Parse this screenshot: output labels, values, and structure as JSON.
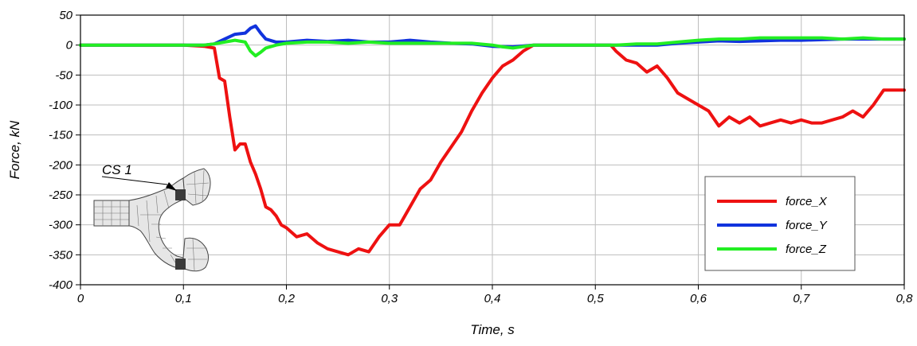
{
  "chart_data": {
    "type": "line",
    "title": "",
    "xlabel": "Time, s",
    "ylabel": "Force, kN",
    "xlim": [
      0,
      0.8
    ],
    "ylim": [
      -400,
      50
    ],
    "x_ticks": [
      0,
      0.1,
      0.2,
      0.3,
      0.4,
      0.5,
      0.6,
      0.7,
      0.8
    ],
    "x_tick_labels": [
      "0",
      "0,1",
      "0,2",
      "0,3",
      "0,4",
      "0,5",
      "0,6",
      "0,7",
      "0,8"
    ],
    "y_ticks": [
      50,
      0,
      -50,
      -100,
      -150,
      -200,
      -250,
      -300,
      -350,
      -400
    ],
    "y_tick_labels": [
      "50",
      "0",
      "-50",
      "-100",
      "-150",
      "-200",
      "-250",
      "-300",
      "-350",
      "-400"
    ],
    "grid": true,
    "legend_position": "bottom-right",
    "annotation": "CS 1",
    "series": [
      {
        "name": "force_X",
        "color": "#ee1111",
        "x": [
          0,
          0.05,
          0.1,
          0.12,
          0.13,
          0.135,
          0.14,
          0.145,
          0.15,
          0.155,
          0.16,
          0.165,
          0.17,
          0.175,
          0.18,
          0.185,
          0.19,
          0.195,
          0.2,
          0.21,
          0.22,
          0.23,
          0.24,
          0.25,
          0.26,
          0.27,
          0.28,
          0.29,
          0.3,
          0.31,
          0.32,
          0.33,
          0.34,
          0.35,
          0.36,
          0.37,
          0.38,
          0.39,
          0.4,
          0.41,
          0.42,
          0.43,
          0.44,
          0.46,
          0.48,
          0.5,
          0.515,
          0.52,
          0.53,
          0.54,
          0.55,
          0.56,
          0.57,
          0.58,
          0.59,
          0.6,
          0.61,
          0.62,
          0.63,
          0.64,
          0.65,
          0.66,
          0.67,
          0.68,
          0.69,
          0.7,
          0.71,
          0.72,
          0.73,
          0.74,
          0.75,
          0.76,
          0.77,
          0.78,
          0.79,
          0.8
        ],
        "y": [
          0,
          0,
          0,
          -2,
          -5,
          -55,
          -60,
          -120,
          -175,
          -165,
          -165,
          -195,
          -215,
          -240,
          -270,
          -275,
          -285,
          -300,
          -305,
          -320,
          -315,
          -330,
          -340,
          -345,
          -350,
          -340,
          -345,
          -320,
          -300,
          -300,
          -270,
          -240,
          -225,
          -195,
          -170,
          -145,
          -110,
          -80,
          -55,
          -35,
          -25,
          -10,
          0,
          0,
          0,
          0,
          0,
          -10,
          -25,
          -30,
          -45,
          -35,
          -55,
          -80,
          -90,
          -100,
          -110,
          -135,
          -120,
          -130,
          -120,
          -135,
          -130,
          -125,
          -130,
          -125,
          -130,
          -130,
          -125,
          -120,
          -110,
          -120,
          -100,
          -75,
          -75,
          -75
        ]
      },
      {
        "name": "force_Y",
        "color": "#1133dd",
        "x": [
          0,
          0.05,
          0.1,
          0.12,
          0.13,
          0.14,
          0.15,
          0.16,
          0.165,
          0.17,
          0.175,
          0.18,
          0.19,
          0.2,
          0.22,
          0.24,
          0.26,
          0.28,
          0.3,
          0.32,
          0.34,
          0.36,
          0.38,
          0.4,
          0.42,
          0.44,
          0.46,
          0.48,
          0.5,
          0.52,
          0.54,
          0.56,
          0.58,
          0.6,
          0.62,
          0.64,
          0.66,
          0.68,
          0.7,
          0.72,
          0.74,
          0.76,
          0.78,
          0.8
        ],
        "y": [
          0,
          0,
          0,
          0,
          2,
          10,
          18,
          20,
          28,
          32,
          20,
          10,
          5,
          5,
          8,
          6,
          8,
          5,
          5,
          8,
          5,
          3,
          2,
          -2,
          -3,
          0,
          0,
          0,
          0,
          0,
          0,
          0,
          3,
          5,
          7,
          6,
          7,
          8,
          8,
          9,
          10,
          10,
          10,
          10
        ]
      },
      {
        "name": "force_Z",
        "color": "#22ee22",
        "x": [
          0,
          0.05,
          0.1,
          0.12,
          0.13,
          0.14,
          0.15,
          0.16,
          0.165,
          0.17,
          0.175,
          0.18,
          0.19,
          0.2,
          0.22,
          0.24,
          0.26,
          0.28,
          0.3,
          0.32,
          0.34,
          0.36,
          0.38,
          0.4,
          0.41,
          0.42,
          0.44,
          0.46,
          0.48,
          0.5,
          0.52,
          0.54,
          0.56,
          0.58,
          0.6,
          0.62,
          0.64,
          0.66,
          0.68,
          0.7,
          0.72,
          0.74,
          0.76,
          0.78,
          0.8
        ],
        "y": [
          0,
          0,
          0,
          0,
          2,
          5,
          8,
          5,
          -10,
          -18,
          -12,
          -5,
          0,
          3,
          5,
          5,
          3,
          5,
          3,
          3,
          3,
          3,
          3,
          0,
          -3,
          -5,
          0,
          0,
          0,
          0,
          0,
          2,
          2,
          5,
          8,
          10,
          10,
          12,
          12,
          12,
          12,
          10,
          12,
          10,
          10
        ]
      }
    ]
  }
}
